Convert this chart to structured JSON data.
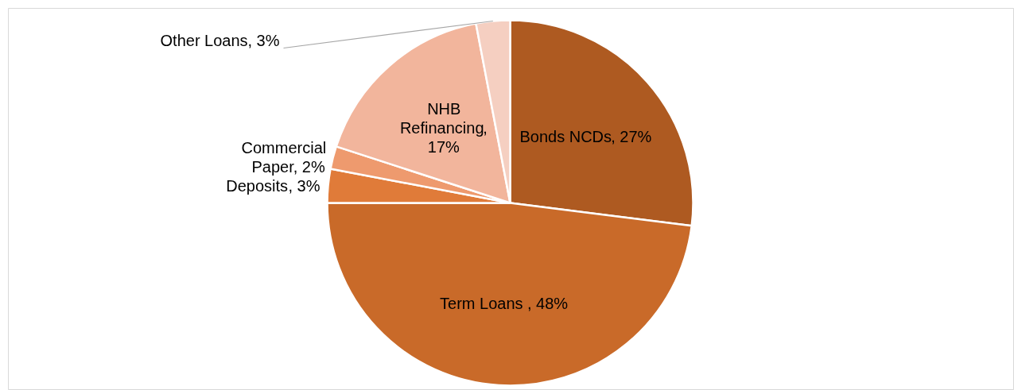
{
  "chart_data": {
    "type": "pie",
    "categories": [
      "Bonds NCDs",
      "Term Loans",
      "Deposits",
      "Commercial Paper",
      "NHB Refinancing",
      "Other Loans"
    ],
    "values": [
      27,
      48,
      3,
      2,
      17,
      3
    ],
    "colors": [
      "#ae5a21",
      "#c96a29",
      "#e07b39",
      "#ee9a6e",
      "#f2b59c",
      "#f5cfc1"
    ],
    "value_labels": [
      ", 27%",
      ", 48%",
      ", 3%",
      ", 2%",
      ",\n17%",
      ", 3%"
    ]
  }
}
